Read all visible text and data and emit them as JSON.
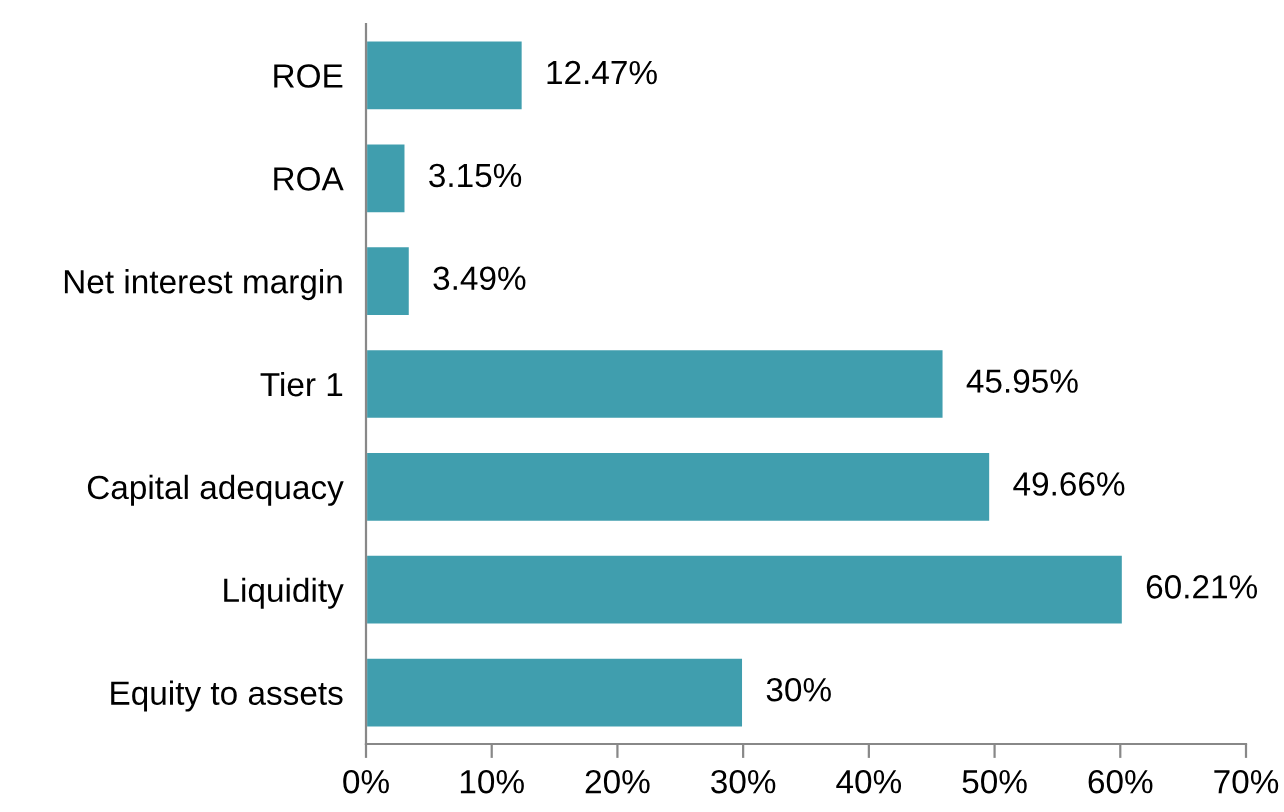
{
  "chart_data": {
    "type": "bar",
    "orientation": "horizontal",
    "categories": [
      "ROE",
      "ROA",
      "Net interest margin",
      "Tier 1",
      "Capital adequacy",
      "Liquidity",
      "Equity to assets"
    ],
    "values": [
      12.47,
      3.15,
      3.49,
      45.95,
      49.66,
      60.21,
      30
    ],
    "value_labels": [
      "12.47%",
      "3.15%",
      "3.49%",
      "45.95%",
      "49.66%",
      "60.21%",
      "30%"
    ],
    "color": "#409eae",
    "xlim": [
      0,
      70
    ],
    "xticks": [
      {
        "value": 0,
        "label": "0%"
      },
      {
        "value": 10,
        "label": "10%"
      },
      {
        "value": 20,
        "label": "20%"
      },
      {
        "value": 30,
        "label": "30%"
      },
      {
        "value": 40,
        "label": "40%"
      },
      {
        "value": 50,
        "label": "50%"
      },
      {
        "value": 60,
        "label": "60%"
      },
      {
        "value": 70,
        "label": "70%"
      }
    ],
    "grid": false,
    "legend": false
  }
}
